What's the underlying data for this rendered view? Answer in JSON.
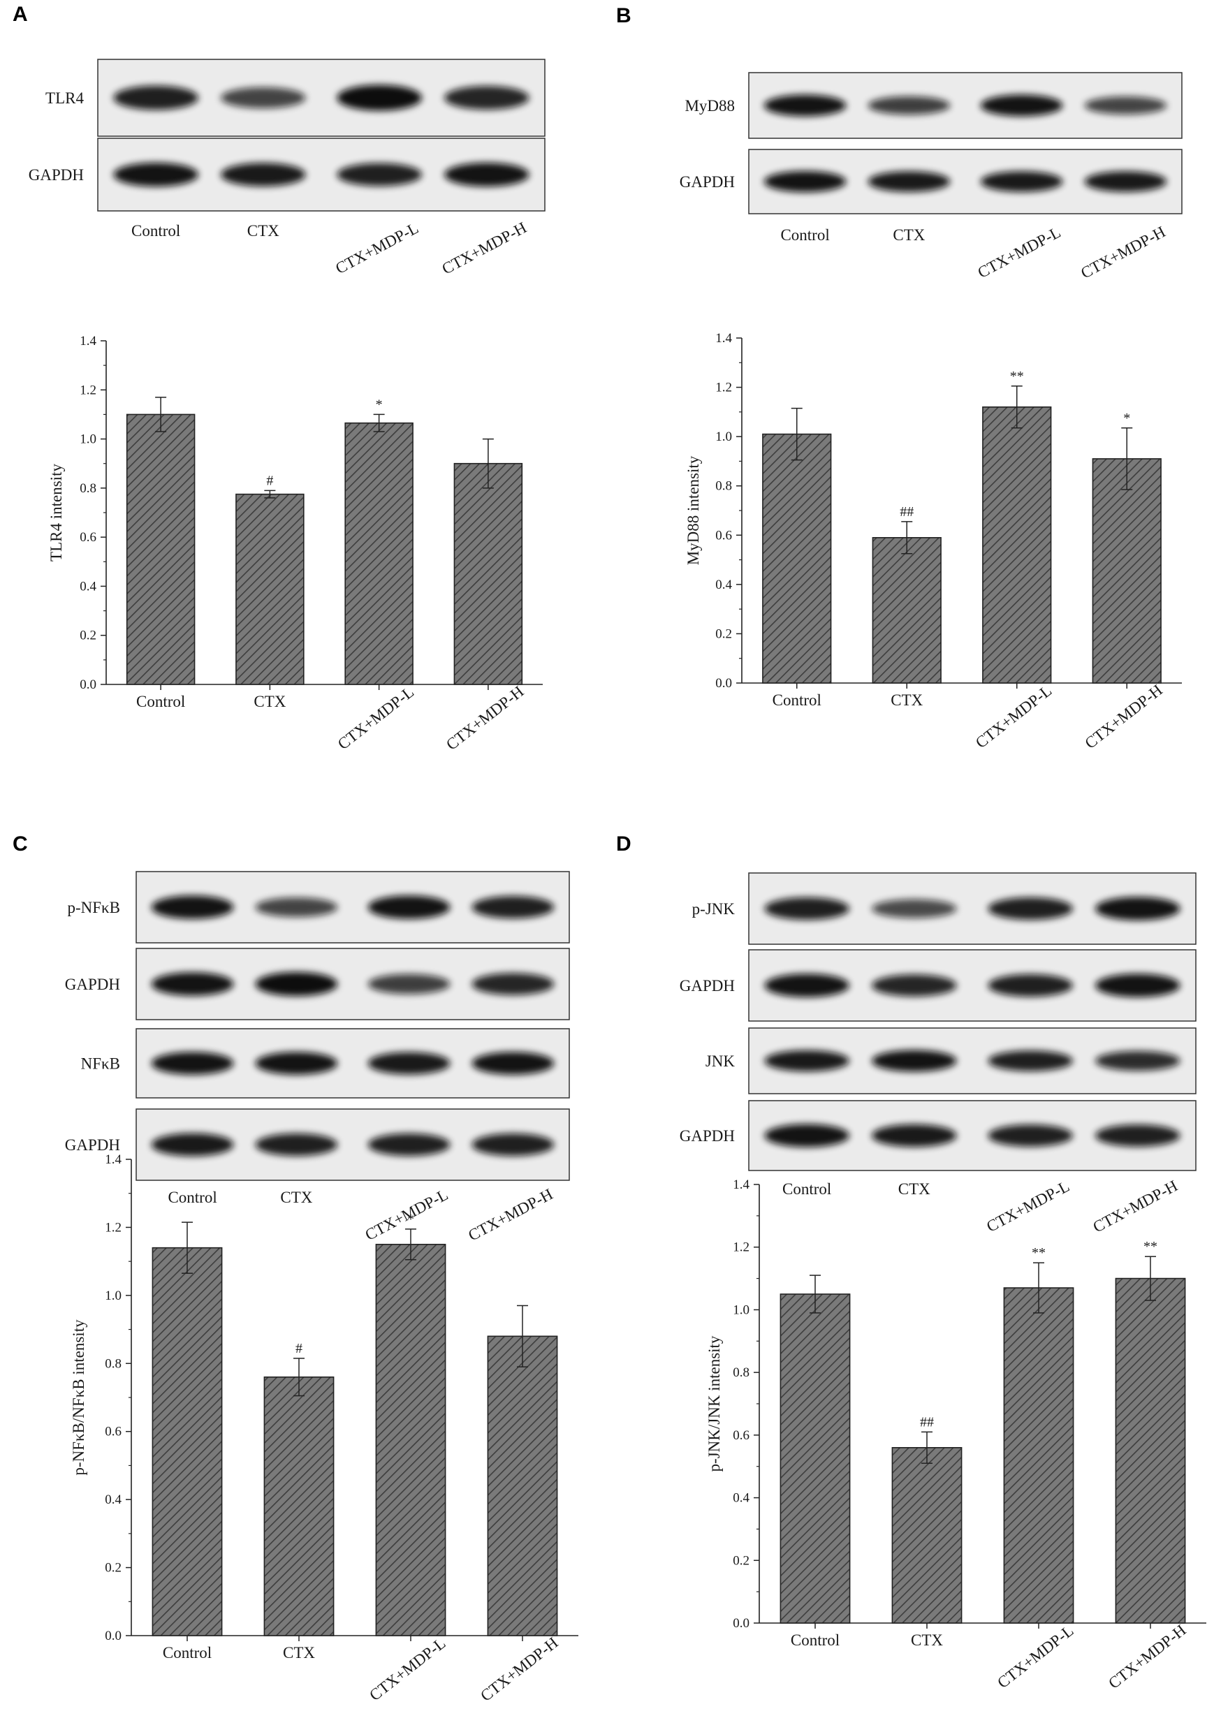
{
  "colors": {
    "bar_fill": "#6e6e6e",
    "hatch": "#3a3a3a",
    "axis": "#222222",
    "band": "#141414",
    "blot_bg": "#e9e9e9"
  },
  "panels": [
    {
      "letter": "A",
      "blots": [
        {
          "label": "TLR4",
          "intensities": [
            0.85,
            0.55,
            1.0,
            0.8
          ]
        },
        {
          "label": "GAPDH",
          "intensities": [
            0.95,
            0.9,
            0.85,
            0.95
          ]
        }
      ],
      "blot_lanes": [
        "Control",
        "CTX",
        "CTX+MDP-L",
        "CTX+MDP-H"
      ]
    },
    {
      "letter": "B",
      "blots": [
        {
          "label": "MyD88",
          "intensities": [
            0.95,
            0.6,
            0.95,
            0.55
          ]
        },
        {
          "label": "GAPDH",
          "intensities": [
            0.95,
            0.9,
            0.9,
            0.9
          ]
        }
      ],
      "blot_lanes": [
        "Control",
        "CTX",
        "CTX+MDP-L",
        "CTX+MDP-H"
      ]
    },
    {
      "letter": "C",
      "blots": [
        {
          "label": "p-NFκB",
          "intensities": [
            0.95,
            0.55,
            0.95,
            0.85
          ]
        },
        {
          "label": "GAPDH",
          "intensities": [
            0.95,
            1.0,
            0.6,
            0.8
          ]
        },
        {
          "label": "NFκB",
          "intensities": [
            0.95,
            0.95,
            0.9,
            0.95
          ]
        },
        {
          "label": "GAPDH",
          "intensities": [
            0.9,
            0.85,
            0.85,
            0.85
          ]
        }
      ],
      "blot_lanes": [
        "Control",
        "CTX",
        "CTX+MDP-L",
        "CTX+MDP-H"
      ]
    },
    {
      "letter": "D",
      "blots": [
        {
          "label": "p-JNK",
          "intensities": [
            0.85,
            0.5,
            0.85,
            0.95
          ]
        },
        {
          "label": "GAPDH",
          "intensities": [
            0.95,
            0.8,
            0.85,
            0.95
          ]
        },
        {
          "label": "JNK",
          "intensities": [
            0.9,
            0.95,
            0.85,
            0.75
          ]
        },
        {
          "label": "GAPDH",
          "intensities": [
            0.95,
            0.9,
            0.85,
            0.85
          ]
        }
      ],
      "blot_lanes": [
        "Control",
        "CTX",
        "CTX+MDP-L",
        "CTX+MDP-H"
      ]
    }
  ],
  "chart_data": [
    {
      "type": "bar",
      "panel": "A",
      "categories": [
        "Control",
        "CTX",
        "CTX+MDP-L",
        "CTX+MDP-H"
      ],
      "values": [
        1.1,
        0.775,
        1.065,
        0.9
      ],
      "errors": [
        0.07,
        0.015,
        0.035,
        0.1
      ],
      "significance": [
        "",
        "#",
        "*",
        ""
      ],
      "ylabel": "TLR4 intensity",
      "ylim": [
        0,
        1.4
      ],
      "yticks": [
        "0.0",
        "0.2",
        "0.4",
        "0.6",
        "0.8",
        "1.0",
        "1.2",
        "1.4"
      ],
      "xlabel": ""
    },
    {
      "type": "bar",
      "panel": "B",
      "categories": [
        "Control",
        "CTX",
        "CTX+MDP-L",
        "CTX+MDP-H"
      ],
      "values": [
        1.01,
        0.59,
        1.12,
        0.91
      ],
      "errors": [
        0.105,
        0.065,
        0.085,
        0.125
      ],
      "significance": [
        "",
        "##",
        "**",
        "*"
      ],
      "ylabel": "MyD88 intensity",
      "ylim": [
        0,
        1.4
      ],
      "yticks": [
        "0.0",
        "0.2",
        "0.4",
        "0.6",
        "0.8",
        "1.0",
        "1.2",
        "1.4"
      ],
      "xlabel": ""
    },
    {
      "type": "bar",
      "panel": "C",
      "categories": [
        "Control",
        "CTX",
        "CTX+MDP-L",
        "CTX+MDP-H"
      ],
      "values": [
        1.14,
        0.76,
        1.15,
        0.88
      ],
      "errors": [
        0.075,
        0.055,
        0.045,
        0.09
      ],
      "significance": [
        "",
        "#",
        "*",
        ""
      ],
      "ylabel": "p-NFκB/NFκB intensity",
      "ylim": [
        0,
        1.4
      ],
      "yticks": [
        "0.0",
        "0.2",
        "0.4",
        "0.6",
        "0.8",
        "1.0",
        "1.2",
        "1.4"
      ],
      "xlabel": ""
    },
    {
      "type": "bar",
      "panel": "D",
      "categories": [
        "Control",
        "CTX",
        "CTX+MDP-L",
        "CTX+MDP-H"
      ],
      "values": [
        1.05,
        0.56,
        1.07,
        1.1
      ],
      "errors": [
        0.06,
        0.05,
        0.08,
        0.07
      ],
      "significance": [
        "",
        "##",
        "**",
        "**"
      ],
      "ylabel": "p-JNK/JNK intensity",
      "ylim": [
        0,
        1.4
      ],
      "yticks": [
        "0.0",
        "0.2",
        "0.4",
        "0.6",
        "0.8",
        "1.0",
        "1.2",
        "1.4"
      ],
      "xlabel": ""
    }
  ]
}
